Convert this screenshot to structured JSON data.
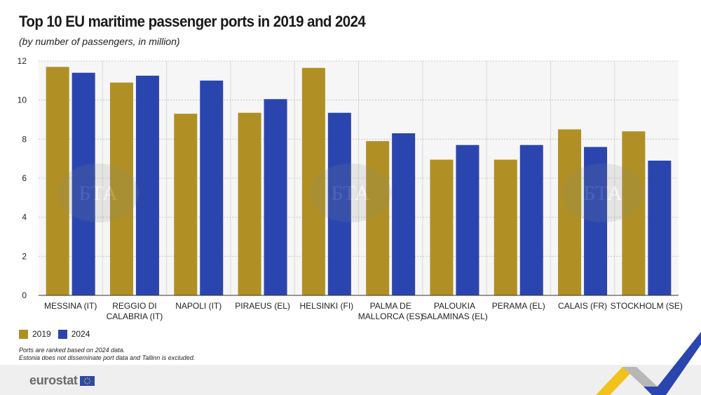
{
  "title": "Top 10 EU maritime passenger ports in 2019 and 2024",
  "subtitle": "(by number of passengers, in million)",
  "legend": [
    {
      "label": "2019",
      "color": "#B09024"
    },
    {
      "label": "2024",
      "color": "#2A45AE"
    }
  ],
  "notes": [
    "Ports are ranked based on 2024 data.",
    "Estonia does not disseminate port data and Tallinn is excluded."
  ],
  "footer": {
    "brand": "eurostat"
  },
  "watermark_text": "БТА",
  "chart_data": {
    "type": "bar",
    "categories": [
      [
        "MESSINA (IT)"
      ],
      [
        "REGGIO DI",
        "CALABRIA (IT)"
      ],
      [
        "NAPOLI (IT)"
      ],
      [
        "PIRAEUS (EL)"
      ],
      [
        "HELSINKI (FI)"
      ],
      [
        "PALMA DE",
        "MALLORCA (ES)"
      ],
      [
        "PALOUKIA",
        "SALAMINAS (EL)"
      ],
      [
        "PERAMA (EL)"
      ],
      [
        "CALAIS (FR)"
      ],
      [
        "STOCKHOLM (SE)"
      ]
    ],
    "series": [
      {
        "name": "2019",
        "color": "#B09024",
        "values": [
          11.7,
          10.9,
          9.3,
          9.35,
          11.65,
          7.9,
          6.95,
          6.95,
          8.5,
          8.4
        ]
      },
      {
        "name": "2024",
        "color": "#2A45AE",
        "values": [
          11.4,
          11.25,
          11.0,
          10.05,
          9.35,
          8.3,
          7.7,
          7.7,
          7.6,
          6.9
        ]
      }
    ],
    "yticks": [
      0,
      2,
      4,
      6,
      8,
      10,
      12
    ],
    "ylim": [
      0,
      12
    ],
    "grid": true
  }
}
